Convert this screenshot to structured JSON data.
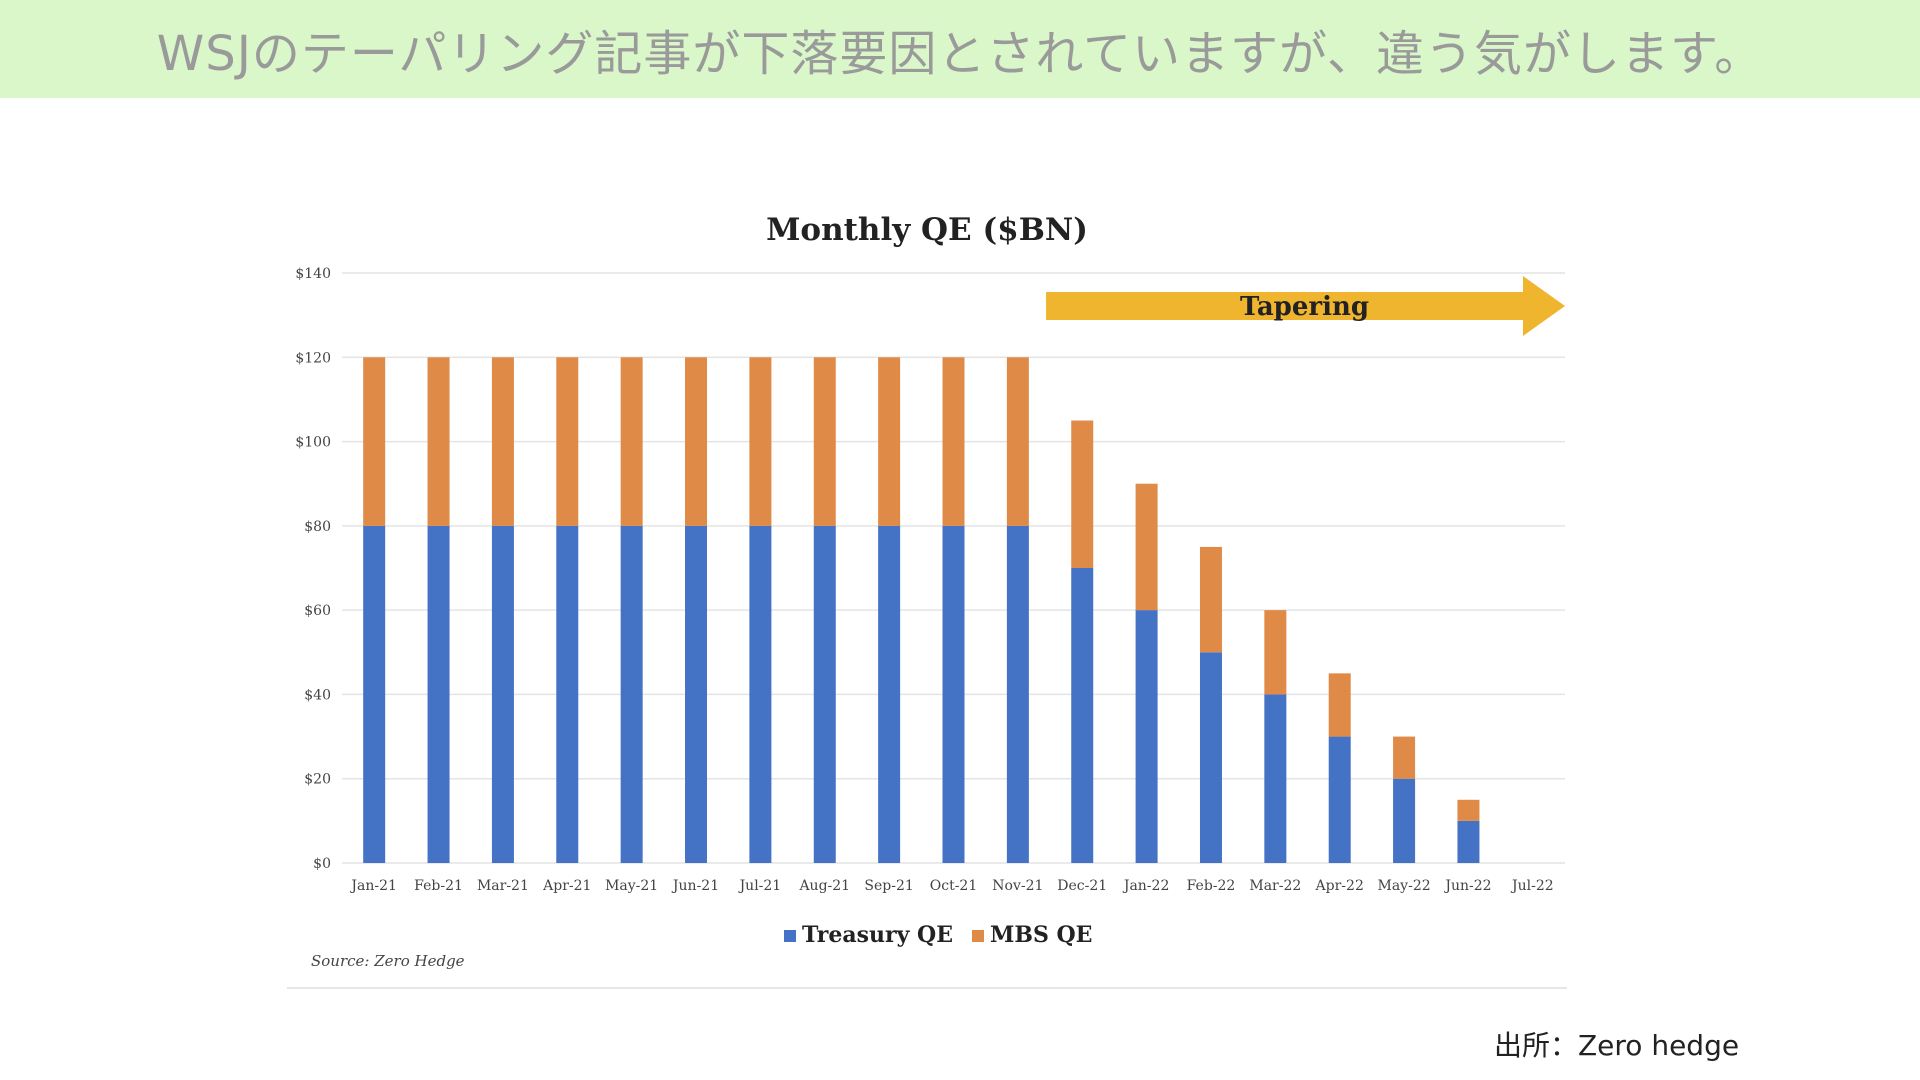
{
  "banner": {
    "text": "WSJのテーパリング記事が下落要因とされていますが、違う気がします。"
  },
  "credit": "出所：Zero hedge",
  "colors": {
    "banner_bg": "#d9f7c8",
    "treasury": "#4472c4",
    "mbs": "#e08a48",
    "arrow": "#f0b52e"
  },
  "chart_data": {
    "type": "bar",
    "stacked": true,
    "title": "Monthly QE ($BN)",
    "categories": [
      "Jan-21",
      "Feb-21",
      "Mar-21",
      "Apr-21",
      "May-21",
      "Jun-21",
      "Jul-21",
      "Aug-21",
      "Sep-21",
      "Oct-21",
      "Nov-21",
      "Dec-21",
      "Jan-22",
      "Feb-22",
      "Mar-22",
      "Apr-22",
      "May-22",
      "Jun-22",
      "Jul-22"
    ],
    "series": [
      {
        "name": "Treasury QE",
        "color": "#4472c4",
        "values": [
          80,
          80,
          80,
          80,
          80,
          80,
          80,
          80,
          80,
          80,
          80,
          70,
          60,
          50,
          40,
          30,
          20,
          10,
          0
        ]
      },
      {
        "name": "MBS QE",
        "color": "#e08a48",
        "values": [
          40,
          40,
          40,
          40,
          40,
          40,
          40,
          40,
          40,
          40,
          40,
          35,
          30,
          25,
          20,
          15,
          10,
          5,
          0
        ]
      }
    ],
    "ylim": [
      0,
      140
    ],
    "yticks": [
      0,
      20,
      40,
      60,
      80,
      100,
      120,
      140
    ],
    "ytick_labels": [
      "$0",
      "$20",
      "$40",
      "$60",
      "$80",
      "$100",
      "$120",
      "$140"
    ],
    "grid": true,
    "legend": "bottom-center",
    "annotation": {
      "text": "Tapering",
      "start_category": "Dec-21"
    },
    "source": "Source: Zero Hedge"
  }
}
